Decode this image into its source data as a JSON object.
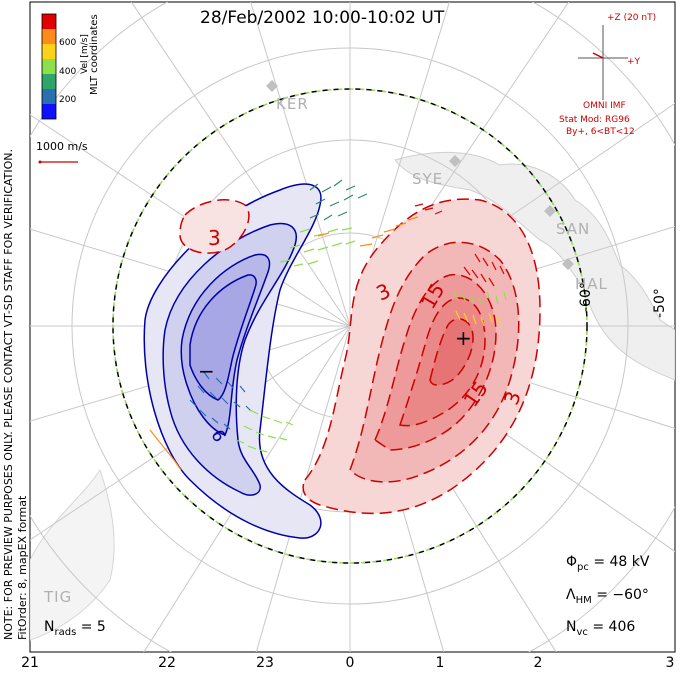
{
  "title": "28/Feb/2002 10:00-10:02 UT",
  "colorbar": {
    "label": "Vel [m/s]",
    "ticks": [
      "600",
      "400",
      "200"
    ],
    "colors": [
      "#e00000",
      "#ff8c1a",
      "#ffd21a",
      "#8ee04a",
      "#2ea66a",
      "#2a6fb0",
      "#1010ff"
    ]
  },
  "coordinates_label": "MLT coordinates",
  "reference_vector": "1000 m/s",
  "side_note": "NOTE: FOR PREVIEW PURPOSES ONLY. PLEASE CONTACT VT-SD STAFF FOR VERIFICATION.",
  "fit_info": "FitOrder: 8, mapEX format",
  "imf": {
    "z_label": "+Z (20 nT)",
    "y_label": "+Y",
    "source": "OMNI IMF",
    "model_line1": "Stat Mod: RG96",
    "model_line2": "By+, 6<BT<12"
  },
  "stations": [
    "KER",
    "SYE",
    "SAN",
    "HAL",
    "TIG"
  ],
  "latitude_labels": [
    "-60°",
    "-50°"
  ],
  "contour_labels": [
    "3",
    "3",
    "15",
    "15",
    "3",
    "6"
  ],
  "potential_markers": {
    "max": "+",
    "min": "−"
  },
  "stats": {
    "phi_symbol": "Φ",
    "phi_sub": "pc",
    "phi_value": "= 48 kV",
    "lambda_symbol": "Λ",
    "lambda_sub": "HM",
    "lambda_value": "= −60°",
    "nvc_symbol": "N",
    "nvc_sub": "vc",
    "nvc_value": "= 406",
    "nrads_symbol": "N",
    "nrads_sub": "rads",
    "nrads_value": "= 5"
  },
  "mlt_ticks": [
    "21",
    "22",
    "23",
    "0",
    "1",
    "2",
    "3"
  ],
  "colors": {
    "positive_fill": "#f08080",
    "negative_fill": "#8a8ae6",
    "positive_line": "#cc0000",
    "negative_line": "#0000aa",
    "grid": "#c8c8c8",
    "coast": "#cfcfcf",
    "hmb": "#000000"
  }
}
